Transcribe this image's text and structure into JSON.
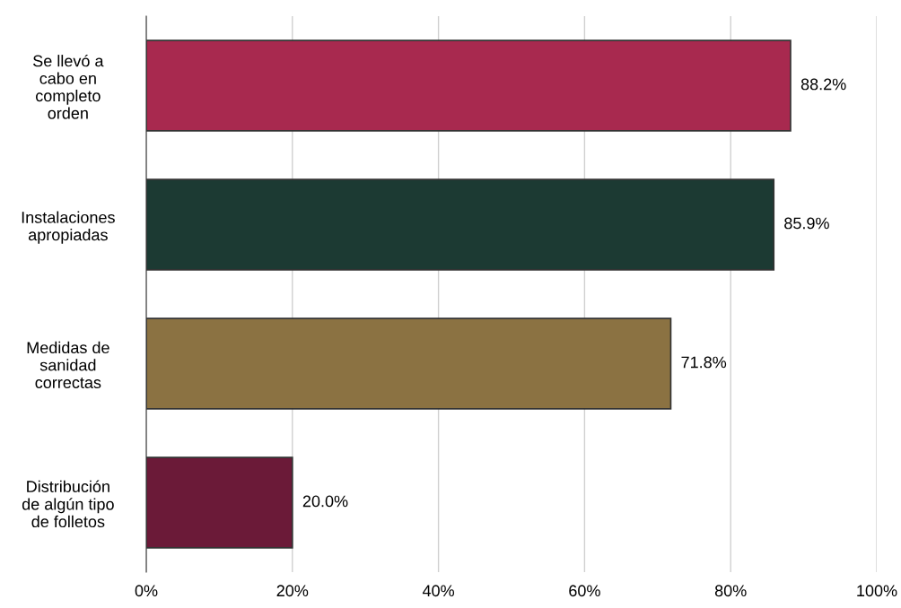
{
  "chart_data": {
    "type": "bar",
    "orientation": "horizontal",
    "categories": [
      "Se llevó a\ncabo en\ncompleto\norden",
      "Instalaciones\napropiadas",
      "Medidas de\nsanidad\ncorrectas",
      "Distribución\nde algún tipo\nde folletos"
    ],
    "values": [
      88.2,
      85.9,
      71.8,
      20.0
    ],
    "colors": [
      "#a8294f",
      "#1c3a33",
      "#8b7242",
      "#6b1a38"
    ],
    "value_labels": [
      "88.2%",
      "85.9%",
      "71.8%",
      "20.0%"
    ],
    "xlim": [
      0,
      100
    ],
    "xticks": [
      {
        "value": 0,
        "label": "0%"
      },
      {
        "value": 20,
        "label": "20%"
      },
      {
        "value": 40,
        "label": "40%"
      },
      {
        "value": 60,
        "label": "60%"
      },
      {
        "value": 80,
        "label": "80%"
      },
      {
        "value": 100,
        "label": "100%"
      }
    ],
    "grid": "x",
    "legend": false
  }
}
